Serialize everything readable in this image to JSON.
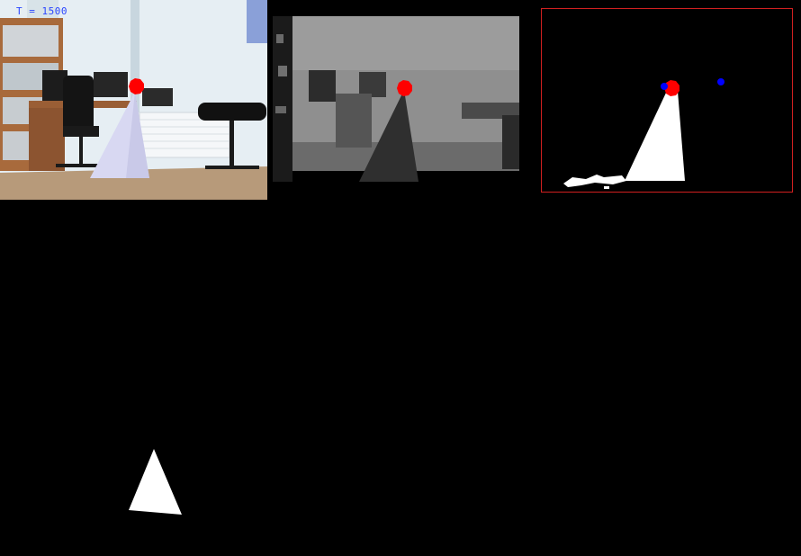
{
  "hud": {
    "timer_text": "T = 1500"
  },
  "views": {
    "rgb": {
      "name": "rgb-camera-view",
      "marker_color": "#ff0000"
    },
    "depth": {
      "name": "depth-map-view",
      "marker_color": "#ff0000"
    },
    "mask": {
      "name": "segmentation-mask-view",
      "border_color": "#d12020",
      "marker_color": "#ff0000",
      "blue_point_color": "#0000ff"
    },
    "silhouette": {
      "name": "detected-shape-view"
    }
  },
  "colors": {
    "background": "#000000",
    "cone_white": "#ffffff",
    "depth_gray": "#7f7f7f",
    "wall": "#e6eef3",
    "floor": "#b79a7a",
    "desk": "#9a5e35"
  }
}
